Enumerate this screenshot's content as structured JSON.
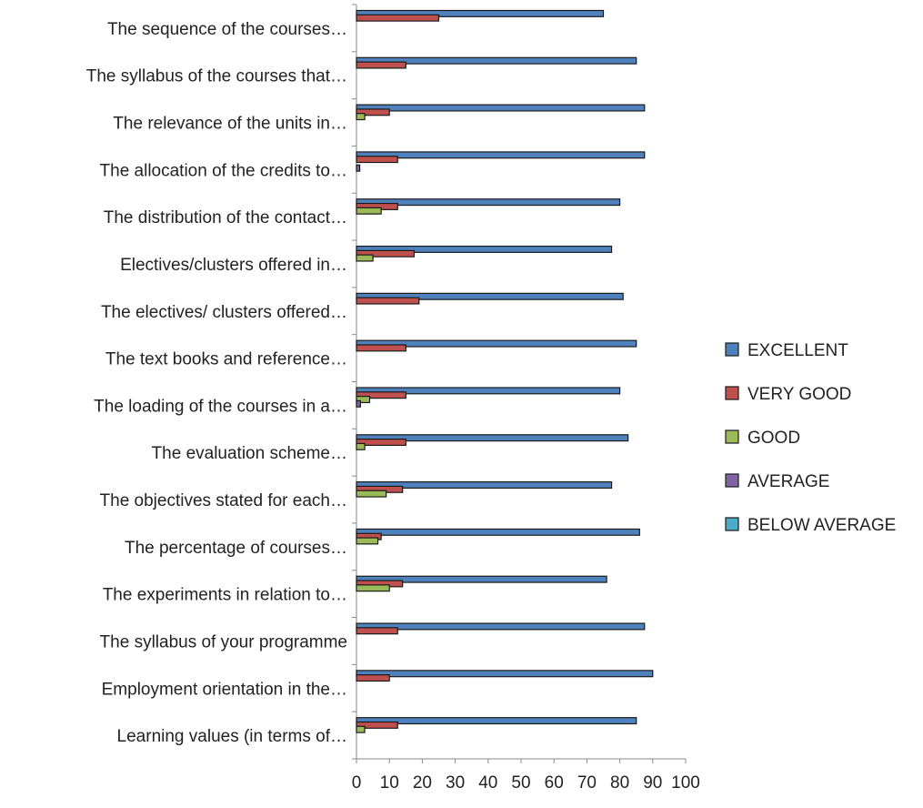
{
  "chart_data": {
    "type": "bar",
    "orientation": "horizontal",
    "title": "",
    "xlabel": "",
    "ylabel": "",
    "xlim": [
      0,
      100
    ],
    "x_ticks": [
      0,
      10,
      20,
      30,
      40,
      50,
      60,
      70,
      80,
      90,
      100
    ],
    "grid": false,
    "legend_position": "right",
    "categories": [
      "The sequence of the courses…",
      "The syllabus of the courses that…",
      "The relevance of the units in…",
      "The allocation of the credits to…",
      "The distribution of the contact…",
      "Electives/clusters offered in…",
      "The electives/ clusters offered…",
      "The text books and reference…",
      "The loading of the courses in a…",
      "The evaluation scheme…",
      "The objectives stated for each…",
      "The percentage of courses…",
      "The experiments in relation to…",
      "The syllabus of your programme",
      "Employment orientation in the…",
      "Learning values (in terms of…"
    ],
    "series": [
      {
        "name": "EXCELLENT",
        "color": "#4F81BD",
        "values": [
          75,
          85,
          87.5,
          87.5,
          80,
          77.5,
          81,
          85,
          80,
          82.5,
          77.5,
          86,
          76,
          87.5,
          90,
          85
        ]
      },
      {
        "name": "VERY GOOD",
        "color": "#C0504D",
        "values": [
          25,
          15,
          10,
          12.5,
          12.5,
          17.5,
          19,
          15,
          15,
          15,
          14,
          7.5,
          14,
          12.5,
          10,
          12.5
        ]
      },
      {
        "name": "GOOD",
        "color": "#9BBB59",
        "values": [
          0,
          0,
          2.5,
          0,
          7.5,
          5,
          0,
          0,
          4,
          2.5,
          9,
          6.5,
          10,
          0,
          0,
          2.5
        ]
      },
      {
        "name": "AVERAGE",
        "color": "#8064A2",
        "values": [
          0,
          0,
          0,
          1,
          0,
          0,
          0,
          0,
          1.2,
          0,
          0,
          0,
          0,
          0,
          0,
          0
        ]
      },
      {
        "name": "BELOW AVERAGE",
        "color": "#4BACC6",
        "values": [
          0,
          0,
          0,
          0,
          0,
          0,
          0,
          0,
          0,
          0,
          0,
          0,
          0,
          0,
          0,
          0
        ]
      }
    ]
  }
}
